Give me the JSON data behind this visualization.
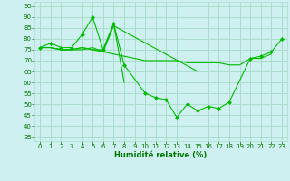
{
  "background_color": "#cff0f0",
  "grid_color": "#aaddcc",
  "line_color": "#00bb00",
  "marker_color": "#00bb00",
  "xlabel": "Humidité relative (%)",
  "xlabel_color": "#007700",
  "tick_color": "#007700",
  "ylim": [
    33,
    97
  ],
  "yticks": [
    35,
    40,
    45,
    50,
    55,
    60,
    65,
    70,
    75,
    80,
    85,
    90,
    95
  ],
  "xlim": [
    -0.5,
    23.5
  ],
  "xticks": [
    0,
    1,
    2,
    3,
    4,
    5,
    6,
    7,
    8,
    9,
    10,
    11,
    12,
    13,
    14,
    15,
    16,
    17,
    18,
    19,
    20,
    21,
    22,
    23
  ],
  "series": [
    {
      "x": [
        0,
        1,
        2,
        3,
        4,
        5,
        6,
        7,
        8,
        10,
        11,
        12,
        13,
        14,
        15,
        16,
        17,
        18,
        20,
        21,
        22,
        23
      ],
      "y": [
        76,
        78,
        76,
        76,
        82,
        90,
        75,
        87,
        68,
        55,
        53,
        52,
        44,
        50,
        47,
        49,
        48,
        51,
        71,
        72,
        74,
        80
      ],
      "has_markers": true
    },
    {
      "x": [
        0,
        1,
        2,
        3,
        4,
        5,
        6,
        7,
        8,
        9,
        10,
        11,
        12,
        13,
        14,
        15,
        16,
        17,
        18,
        19,
        20,
        21,
        22
      ],
      "y": [
        76,
        76,
        75,
        75,
        75,
        76,
        74,
        73,
        72,
        71,
        70,
        70,
        70,
        70,
        69,
        69,
        69,
        69,
        68,
        68,
        71,
        71,
        73
      ],
      "has_markers": false
    },
    {
      "x": [
        0,
        1,
        2,
        3,
        4,
        5,
        6,
        7,
        8
      ],
      "y": [
        76,
        76,
        75,
        75,
        76,
        75,
        75,
        87,
        60
      ],
      "has_markers": false
    },
    {
      "x": [
        0,
        1,
        2,
        3,
        4,
        5,
        6,
        7,
        15
      ],
      "y": [
        76,
        76,
        75,
        75,
        76,
        75,
        74,
        86,
        65
      ],
      "has_markers": false
    }
  ]
}
